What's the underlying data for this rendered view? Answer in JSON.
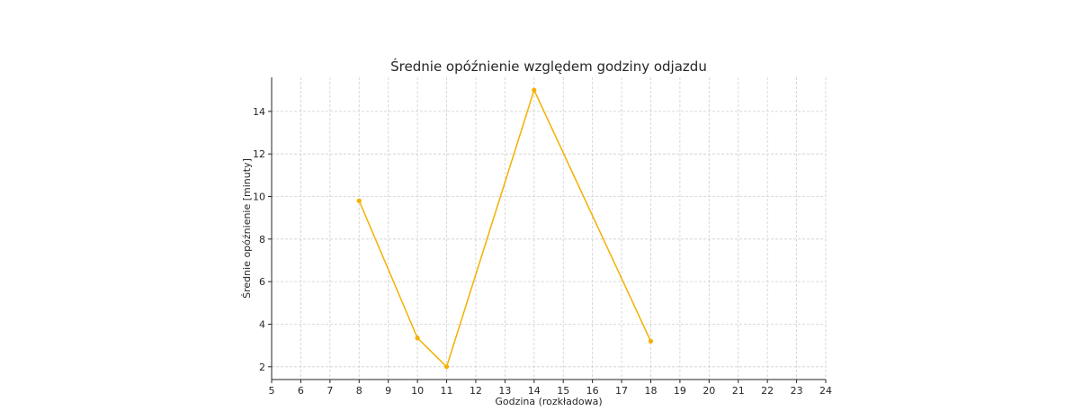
{
  "chart_data": {
    "type": "line",
    "title": "Średnie opóźnienie względem godziny odjazdu",
    "xlabel": "Godzina (rozkładowa)",
    "ylabel": "Średnie opóźnienie [minuty]",
    "xlim": [
      5,
      24
    ],
    "ylim": [
      1.4,
      15.6
    ],
    "x_ticks": [
      5,
      6,
      7,
      8,
      9,
      10,
      11,
      12,
      13,
      14,
      15,
      16,
      17,
      18,
      19,
      20,
      21,
      22,
      23,
      24
    ],
    "y_ticks": [
      2,
      4,
      6,
      8,
      10,
      12,
      14
    ],
    "grid": true,
    "series": [
      {
        "color": "#f5b000",
        "x": [
          8,
          10,
          11,
          14,
          18
        ],
        "y": [
          9.8,
          3.35,
          2.0,
          15.0,
          3.2
        ]
      }
    ]
  }
}
